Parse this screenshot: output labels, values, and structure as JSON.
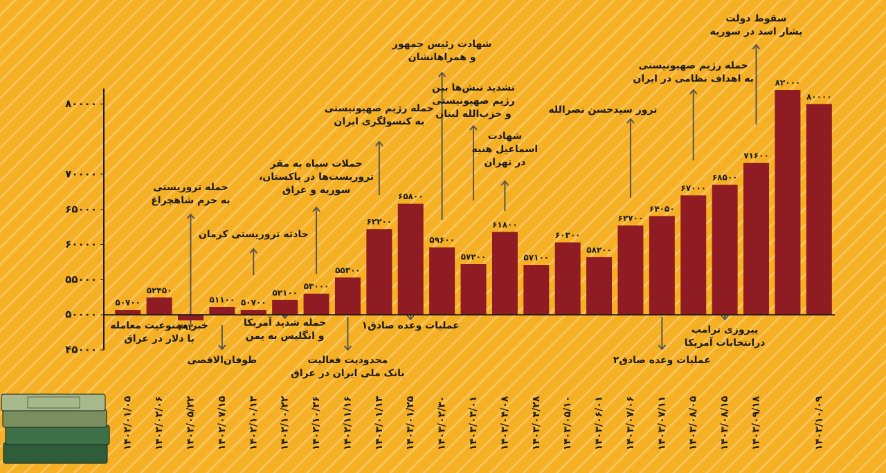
{
  "chart_data": {
    "type": "bar",
    "color": "#8e1c22",
    "baseline": 50000,
    "categories": [
      "۱۴۰۲/۰۱/۰۵",
      "۱۴۰۲/۰۲/۰۶",
      "۱۴۰۲/۰۵/۲۲",
      "۱۴۰۲/۰۷/۱۵",
      "۱۴۰۲/۱۰/۱۳",
      "۱۴۰۲/۱۰/۲۲",
      "۱۴۰۲/۱۰/۲۶",
      "۱۴۰۲/۱۱/۱۶",
      "۱۴۰۳/۰۱/۱۳",
      "۱۴۰۳/۰۱/۲۵",
      "۱۴۰۳/۰۲/۳۰",
      "۱۴۰۳/۰۳/۰۱",
      "۱۴۰۳/۰۴/۰۸",
      "۱۴۰۳/۰۴/۲۸",
      "۱۴۰۳/۰۵/۱۰",
      "۱۴۰۳/۰۶/۰۱",
      "۱۴۰۳/۰۷/۰۶",
      "۱۴۰۳/۰۷/۱۱",
      "۱۴۰۳/۰۸/۰۵",
      "۱۴۰۳/۰۸/۱۵",
      "۱۴۰۳/۰۹/۱۸",
      null,
      "۱۴۰۳/۱۰/۰۹"
    ],
    "values": [
      50700,
      52450,
      49200,
      51100,
      50700,
      52100,
      53000,
      55300,
      62200,
      65800,
      59600,
      57200,
      61800,
      57100,
      60300,
      58200,
      62700,
      64050,
      67000,
      68500,
      71600,
      82000,
      80000
    ],
    "value_labels": [
      "۵۰۷۰۰",
      "۵۲۴۵۰",
      "۴۹۲۰۰",
      "۵۱۱۰۰",
      "۵۰۷۰۰",
      "۵۲۱۰۰",
      "۵۳۰۰۰",
      "۵۵۳۰۰",
      "۶۲۲۰۰",
      "۶۵۸۰۰",
      "۵۹۶۰۰",
      "۵۷۲۰۰",
      "۶۱۸۰۰",
      "۵۷۱۰۰",
      "۶۰۳۰۰",
      "۵۸۲۰۰",
      "۶۲۷۰۰",
      "۶۴۰۵۰",
      "۶۷۰۰۰",
      "۶۸۵۰۰",
      "۷۱۶۰۰",
      "۸۲۰۰۰",
      "۸۰۰۰۰"
    ],
    "ylim": [
      45000,
      82000
    ],
    "yticks": [
      {
        "value": 45000,
        "label": "۴۵۰۰۰"
      },
      {
        "value": 50000,
        "label": "۵۰۰۰۰"
      },
      {
        "value": 55000,
        "label": "۵۵۰۰۰"
      },
      {
        "value": 60000,
        "label": "۶۰۰۰۰"
      },
      {
        "value": 65000,
        "label": "۶۵۰۰۰"
      },
      {
        "value": 70000,
        "label": "۷۰۰۰۰"
      },
      {
        "value": 80000,
        "label": "۸۰۰۰۰"
      }
    ],
    "annotations": [
      "خبر ممنوعیت معامله\nبا دلار در عراق",
      "حمله تروریستی\nبه حرم شاهچراغ",
      "طوفان‌الاقصی",
      "حادثه تروریستی کرمان",
      "حمله شدید آمریکا\nو انگلیس به یمن",
      "حملات سپاه به مقر\nتروریست‌ها در پاکستان،\nسوریه و عراق",
      "محدودیت فعالیت\nبانک ملی ایران در عراق",
      "حمله رژیم صهیونیستی\nبه کنسولگری ایران",
      "عملیات وعده صادق۱",
      "شهادت رئیس جمهور\nو همراهانشان",
      "تشدید تنش‌ها بین\nرژیم صهیونیستی\nو حزب‌الله لبنان",
      "شهادت\nاسماعیل هنیه\nدر تهران",
      "ترور سیدحسن نصرالله",
      "عملیات وعده صادق۲",
      "حمله رژیم صهیونیستی\nبه اهداف نظامی در ایران",
      "پیروزی ترامپ\nدرانتخابات آمریکا",
      "سقوط دولت\nبشار اسد در سوریه"
    ]
  }
}
